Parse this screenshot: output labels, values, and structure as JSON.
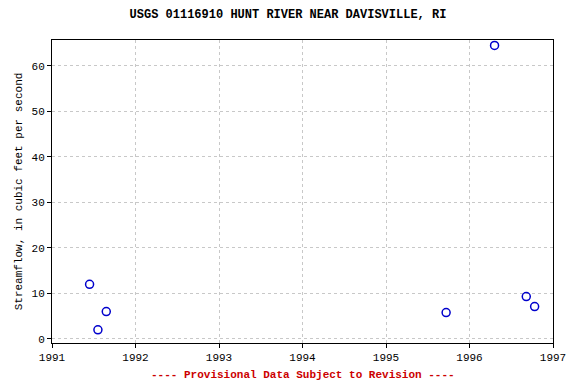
{
  "chart_data": {
    "type": "scatter",
    "title": "USGS 01116910 HUNT RIVER NEAR DAVISVILLE, RI",
    "subtitle": "---- Provisional Data Subject to Revision ----",
    "y_label": "Streamflow, in cubic feet per second",
    "x": [
      1991.45,
      1991.55,
      1991.65,
      1995.72,
      1996.3,
      1996.68,
      1996.78
    ],
    "values": [
      12,
      2,
      6,
      5.8,
      64.5,
      9.3,
      7.1
    ],
    "color": "#0000cc",
    "marker": "circle-open",
    "xlim": [
      1991,
      1997
    ],
    "xticks": [
      1991,
      1992,
      1993,
      1994,
      1995,
      1996,
      1997
    ],
    "ylim": [
      -0.9,
      65.7
    ],
    "yticks": [
      0,
      10,
      20,
      30,
      40,
      50,
      60
    ],
    "grid": true
  }
}
